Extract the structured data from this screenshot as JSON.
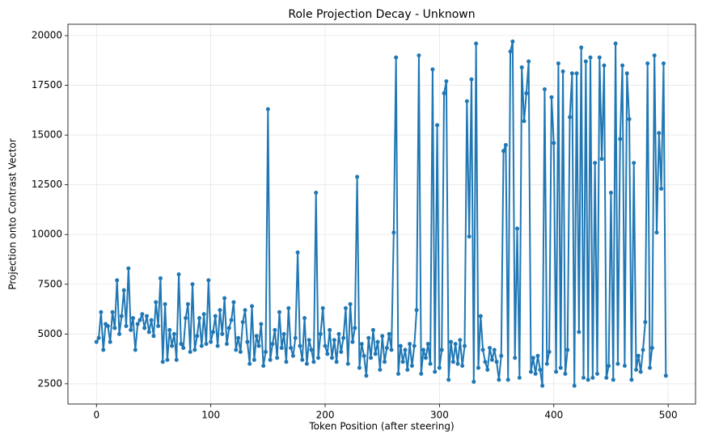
{
  "chart_data": {
    "type": "line",
    "title": "Role Projection Decay - Unknown",
    "x_label": "Token Position (after steering)",
    "y_label": "Projection onto Contrast Vector",
    "color": "#1f77b4",
    "grid": true,
    "xlim": [
      -24.95,
      523.95
    ],
    "ylim": [
      1480,
      20570
    ],
    "xticks": [
      0,
      100,
      200,
      300,
      400,
      500
    ],
    "yticks": [
      2500,
      5000,
      7500,
      10000,
      12500,
      15000,
      17500,
      20000
    ],
    "x": [
      0,
      2,
      4,
      6,
      8,
      10,
      12,
      14,
      16,
      18,
      20,
      22,
      24,
      26,
      28,
      30,
      32,
      34,
      36,
      38,
      40,
      42,
      44,
      46,
      48,
      50,
      52,
      54,
      56,
      58,
      60,
      62,
      64,
      66,
      68,
      70,
      72,
      74,
      76,
      78,
      80,
      82,
      84,
      86,
      88,
      90,
      92,
      94,
      96,
      98,
      100,
      102,
      104,
      106,
      108,
      110,
      112,
      114,
      116,
      118,
      120,
      122,
      124,
      126,
      128,
      130,
      132,
      134,
      136,
      138,
      140,
      142,
      144,
      146,
      148,
      150,
      152,
      154,
      156,
      158,
      160,
      162,
      164,
      166,
      168,
      170,
      172,
      174,
      176,
      178,
      180,
      182,
      184,
      186,
      188,
      190,
      192,
      194,
      196,
      198,
      200,
      202,
      204,
      206,
      208,
      210,
      212,
      214,
      216,
      218,
      220,
      222,
      224,
      226,
      228,
      230,
      232,
      234,
      236,
      238,
      240,
      242,
      244,
      246,
      248,
      250,
      252,
      254,
      256,
      258,
      260,
      262,
      264,
      266,
      268,
      270,
      272,
      274,
      276,
      278,
      280,
      282,
      284,
      286,
      288,
      290,
      292,
      294,
      296,
      298,
      300,
      302,
      304,
      306,
      308,
      310,
      312,
      314,
      316,
      318,
      320,
      322,
      324,
      326,
      328,
      330,
      332,
      334,
      336,
      338,
      340,
      342,
      344,
      346,
      348,
      350,
      352,
      354,
      356,
      358,
      360,
      362,
      364,
      366,
      368,
      370,
      372,
      374,
      376,
      378,
      380,
      382,
      384,
      386,
      388,
      390,
      392,
      394,
      396,
      398,
      400,
      402,
      404,
      406,
      408,
      410,
      412,
      414,
      416,
      418,
      420,
      422,
      424,
      426,
      428,
      430,
      432,
      434,
      436,
      438,
      440,
      442,
      444,
      446,
      448,
      450,
      452,
      454,
      456,
      458,
      460,
      462,
      464,
      466,
      468,
      470,
      472,
      474,
      476,
      478,
      480,
      482,
      484,
      486,
      488,
      490,
      492,
      494,
      496,
      498
    ],
    "values": [
      4600,
      4800,
      6100,
      4200,
      5500,
      5400,
      4600,
      6100,
      5300,
      7700,
      5000,
      5900,
      7200,
      5400,
      8300,
      5200,
      5800,
      4200,
      5500,
      5700,
      6000,
      5300,
      5900,
      5100,
      5700,
      4900,
      6600,
      5400,
      7800,
      3600,
      6500,
      3700,
      5200,
      4400,
      5000,
      3700,
      8000,
      4500,
      4300,
      5800,
      6500,
      4100,
      7500,
      4200,
      4900,
      5800,
      4400,
      6000,
      4500,
      7700,
      4600,
      5100,
      5900,
      4400,
      6200,
      5000,
      6800,
      4500,
      5300,
      5700,
      6600,
      4200,
      4800,
      4100,
      5600,
      6200,
      4600,
      3500,
      6400,
      3700,
      4900,
      4400,
      5500,
      3400,
      4100,
      16300,
      3700,
      4500,
      5200,
      3800,
      6100,
      4300,
      5000,
      3600,
      6300,
      4300,
      3900,
      4800,
      9100,
      4400,
      3700,
      5800,
      3500,
      4700,
      4200,
      3600,
      12100,
      3800,
      5000,
      6300,
      4400,
      4000,
      5200,
      3800,
      4700,
      3600,
      5000,
      4100,
      4800,
      6300,
      3500,
      6500,
      4600,
      5300,
      12900,
      3300,
      4500,
      3900,
      2900,
      4800,
      3800,
      5200,
      4000,
      4600,
      3200,
      4900,
      3600,
      4300,
      5000,
      4200,
      10100,
      18900,
      3000,
      4400,
      3600,
      4200,
      3200,
      4500,
      3400,
      4400,
      6200,
      19000,
      3000,
      4200,
      3800,
      4500,
      3500,
      18300,
      3100,
      15500,
      3300,
      4200,
      17100,
      17700,
      2700,
      4600,
      3600,
      4500,
      3500,
      4700,
      3400,
      4400,
      16700,
      9900,
      17800,
      2600,
      19600,
      3300,
      5900,
      4200,
      3600,
      3200,
      4300,
      3700,
      4200,
      3600,
      2700,
      3900,
      14200,
      14500,
      2700,
      19200,
      19700,
      3800,
      10300,
      2800,
      18400,
      15700,
      17100,
      18700,
      3100,
      3800,
      3000,
      3900,
      3200,
      2400,
      17300,
      3500,
      4100,
      16900,
      14600,
      3100,
      18600,
      3300,
      18200,
      3000,
      4200,
      15900,
      18100,
      2400,
      18100,
      5100,
      19400,
      2800,
      18700,
      2700,
      18900,
      2800,
      13600,
      3000,
      18900,
      13800,
      18500,
      2800,
      3400,
      12100,
      2700,
      19600,
      3500,
      14800,
      18500,
      3400,
      18100,
      15800,
      2700,
      13600,
      3200,
      3900,
      3100,
      4200,
      5600,
      18600,
      3300,
      4300,
      19000,
      10100,
      15100,
      12300,
      18600,
      2900
    ]
  }
}
